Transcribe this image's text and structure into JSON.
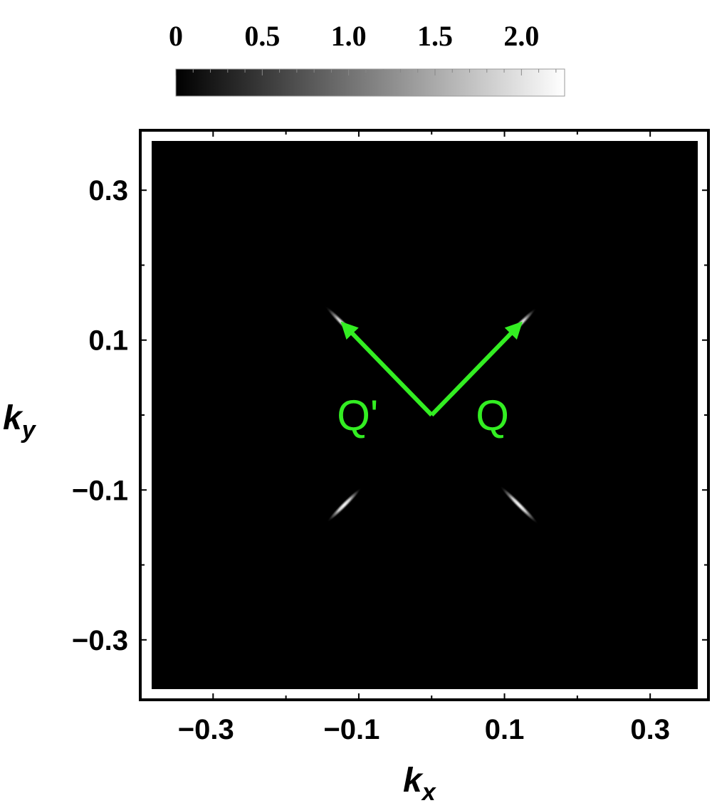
{
  "chart_data": {
    "type": "heatmap",
    "colormap": [
      "#000000",
      "#ffffff"
    ],
    "colorbar": {
      "range": [
        0,
        2.25
      ],
      "ticks": [
        0,
        0.5,
        1.0,
        1.5,
        2.0
      ],
      "tick_labels": [
        "0",
        "0.5",
        "1.0",
        "1.5",
        "2.0"
      ]
    },
    "xlabel": {
      "main": "k",
      "sub": "x"
    },
    "ylabel": {
      "main": "k",
      "sub": "y"
    },
    "xlim": [
      -0.4,
      0.38
    ],
    "ylim": [
      -0.38,
      0.38
    ],
    "x_ticks": [
      -0.3,
      -0.1,
      0.1,
      0.3
    ],
    "x_tick_labels": [
      "−0.3",
      "−0.1",
      "0.1",
      "0.3"
    ],
    "y_ticks": [
      0.3,
      0.1,
      -0.1,
      -0.3
    ],
    "y_tick_labels": [
      "0.3",
      "0.1",
      "−0.1",
      "−0.3"
    ],
    "background_value": 0,
    "bright_spots": [
      {
        "x": 0.12,
        "y": 0.12,
        "value": 2.0
      },
      {
        "x": -0.12,
        "y": 0.12,
        "value": 2.2
      },
      {
        "x": -0.12,
        "y": -0.12,
        "value": 2.0
      },
      {
        "x": 0.12,
        "y": -0.12,
        "value": 2.2
      }
    ],
    "annotations": [
      {
        "label": "Q",
        "from": [
          0,
          0
        ],
        "to": [
          0.12,
          0.12
        ],
        "color": "#33ee22"
      },
      {
        "label": "Q'",
        "from": [
          0,
          0
        ],
        "to": [
          -0.12,
          0.12
        ],
        "color": "#33ee22"
      }
    ]
  }
}
